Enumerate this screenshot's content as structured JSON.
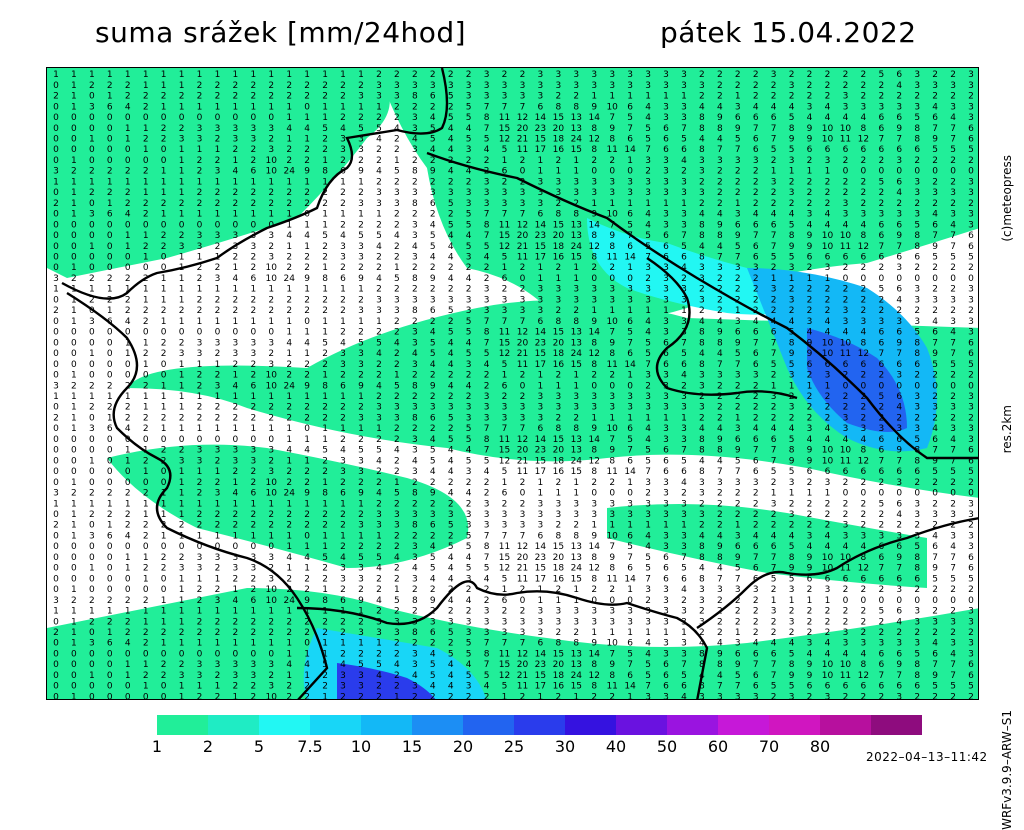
{
  "header": {
    "title": "suma srážek [mm/24hod]",
    "date": "pátek 15.04.2022"
  },
  "side_labels": {
    "credit": "(c)meteopress",
    "resolution": "res.2km",
    "model": "WRFv3.9.9–ARW–S1"
  },
  "timestamp": "2022–04–13–11:42",
  "chart_data": {
    "type": "heatmap",
    "title": "suma srážek [mm/24hod]",
    "subtitle": "pátek 15.04.2022",
    "units": "mm/24hod",
    "colorbar": {
      "ticks": [
        "1",
        "2",
        "5",
        "7.5",
        "10",
        "15",
        "20",
        "25",
        "30",
        "40",
        "50",
        "60",
        "70",
        "80"
      ],
      "colors": [
        "#21ee99",
        "#1fecc4",
        "#22f7f3",
        "#18d6f7",
        "#13b8f6",
        "#1c8ef4",
        "#2264f0",
        "#2a3cec",
        "#3512e0",
        "#6a12e0",
        "#9a14e0",
        "#c618d8",
        "#d016c0",
        "#b7109e",
        "#8e0c7e"
      ]
    },
    "grid": {
      "cols": 52,
      "rows": 59,
      "sample_rows": [
        [
          "1",
          "1",
          "1",
          "1",
          "1",
          "1",
          "1",
          "1",
          "1",
          "1",
          "1",
          "1",
          "1",
          "1",
          "1",
          "1",
          "1",
          "1",
          "2",
          "2",
          "2",
          "2",
          "2",
          "2",
          "3",
          "2",
          "2",
          "3",
          "3",
          "3",
          "3",
          "3",
          "3",
          "3",
          "3",
          "3",
          "2",
          "2",
          "2",
          "2",
          "3",
          "2",
          "2",
          "2",
          "2",
          "2",
          "5",
          "6",
          "3",
          "2",
          "2",
          "3"
        ],
        [
          "0",
          "1",
          "2",
          "2",
          "2",
          "1",
          "1",
          "1",
          "2",
          "2",
          "2",
          "2",
          "2",
          "2",
          "2",
          "2",
          "2",
          "2",
          "3",
          "3",
          "3",
          "3",
          "3",
          "3",
          "3",
          "3",
          "3",
          "3",
          "3",
          "3",
          "3",
          "3",
          "3",
          "3",
          "3",
          "3",
          "3",
          "2",
          "2",
          "2",
          "2",
          "3",
          "2",
          "2",
          "2",
          "2",
          "2",
          "4",
          "3",
          "3",
          "3",
          "3"
        ],
        [
          "2",
          "1",
          "0",
          "1",
          "2",
          "2",
          "2",
          "2",
          "2",
          "2",
          "2",
          "2",
          "2",
          "2",
          "2",
          "2",
          "2",
          "3",
          "3",
          "3",
          "8",
          "6",
          "5",
          "3",
          "3",
          "3",
          "3",
          "3",
          "2",
          "2",
          "1",
          "1",
          "1",
          "1",
          "1",
          "1",
          "2",
          "2",
          "1",
          "2",
          "2",
          "2",
          "2",
          "2",
          "3",
          "2",
          "2",
          "2",
          "2",
          "2",
          "2",
          "2"
        ],
        [
          "0",
          "1",
          "3",
          "6",
          "4",
          "2",
          "1",
          "1",
          "1",
          "1",
          "1",
          "1",
          "1",
          "1",
          "0",
          "1",
          "1",
          "1",
          "1",
          "2",
          "2",
          "2",
          "2",
          "5",
          "7",
          "7",
          "7",
          "6",
          "8",
          "8",
          "9",
          "10",
          "6",
          "4",
          "3",
          "3",
          "4",
          "4",
          "3",
          "4",
          "4",
          "4",
          "3",
          "4",
          "3",
          "3",
          "3",
          "3",
          "3",
          "4",
          "3",
          "3"
        ],
        [
          "0",
          "0",
          "0",
          "0",
          "0",
          "0",
          "0",
          "0",
          "0",
          "0",
          "0",
          "0",
          "0",
          "1",
          "1",
          "1",
          "2",
          "2",
          "2",
          "2",
          "3",
          "4",
          "5",
          "5",
          "8",
          "11",
          "12",
          "14",
          "15",
          "13",
          "14",
          "7",
          "5",
          "4",
          "3",
          "3",
          "8",
          "9",
          "6",
          "6",
          "6",
          "5",
          "4",
          "4",
          "4",
          "4",
          "6",
          "6",
          "5",
          "6",
          "4",
          "3"
        ],
        [
          "0",
          "0",
          "0",
          "0",
          "1",
          "1",
          "2",
          "2",
          "3",
          "3",
          "3",
          "3",
          "3",
          "4",
          "4",
          "5",
          "4",
          "5",
          "5",
          "4",
          "3",
          "5",
          "4",
          "4",
          "7",
          "15",
          "20",
          "23",
          "20",
          "13",
          "8",
          "9",
          "7",
          "5",
          "6",
          "7",
          "8",
          "8",
          "9",
          "7",
          "7",
          "8",
          "9",
          "10",
          "10",
          "8",
          "6",
          "9",
          "8",
          "7",
          "7",
          "6"
        ],
        [
          "0",
          "0",
          "1",
          "0",
          "1",
          "2",
          "2",
          "3",
          "3",
          "2",
          "3",
          "3",
          "2",
          "1",
          "1",
          "2",
          "3",
          "3",
          "4",
          "2",
          "4",
          "5",
          "4",
          "5",
          "5",
          "12",
          "21",
          "15",
          "18",
          "24",
          "12",
          "8",
          "6",
          "5",
          "6",
          "5",
          "4",
          "4",
          "5",
          "6",
          "7",
          "9",
          "9",
          "10",
          "11",
          "12",
          "7",
          "7",
          "8",
          "9",
          "7",
          "6"
        ],
        [
          "0",
          "0",
          "0",
          "0",
          "0",
          "1",
          "0",
          "1",
          "1",
          "1",
          "2",
          "2",
          "3",
          "2",
          "2",
          "2",
          "3",
          "3",
          "2",
          "2",
          "3",
          "4",
          "4",
          "3",
          "4",
          "5",
          "11",
          "17",
          "16",
          "15",
          "8",
          "11",
          "14",
          "7",
          "6",
          "6",
          "8",
          "7",
          "7",
          "6",
          "5",
          "5",
          "6",
          "6",
          "6",
          "6",
          "6",
          "6",
          "6",
          "5",
          "5",
          "5"
        ],
        [
          "0",
          "1",
          "0",
          "0",
          "0",
          "0",
          "0",
          "1",
          "2",
          "2",
          "1",
          "2",
          "10",
          "2",
          "2",
          "1",
          "2",
          "2",
          "2",
          "1",
          "2",
          "2",
          "2",
          "2",
          "2",
          "1",
          "2",
          "1",
          "2",
          "1",
          "2",
          "2",
          "1",
          "3",
          "3",
          "4",
          "3",
          "3",
          "3",
          "3",
          "2",
          "3",
          "2",
          "3",
          "2",
          "2",
          "2",
          "3",
          "2",
          "2",
          "2",
          "2"
        ],
        [
          "3",
          "2",
          "2",
          "2",
          "2",
          "2",
          "1",
          "1",
          "2",
          "3",
          "4",
          "6",
          "10",
          "24",
          "9",
          "8",
          "6",
          "9",
          "4",
          "5",
          "8",
          "9",
          "4",
          "4",
          "2",
          "6",
          "0",
          "1",
          "1",
          "1",
          "0",
          "0",
          "0",
          "2",
          "3",
          "2",
          "3",
          "2",
          "2",
          "2",
          "1",
          "1",
          "1",
          "1",
          "0",
          "0",
          "0",
          "0",
          "0",
          "0",
          "0",
          "0"
        ]
      ]
    }
  }
}
